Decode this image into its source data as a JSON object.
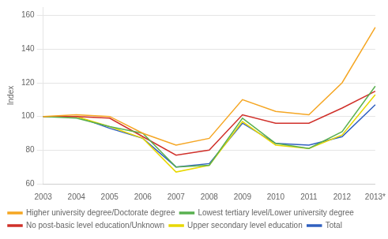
{
  "chart_data": {
    "type": "line",
    "ylabel": "Index",
    "categories": [
      "2003",
      "2004",
      "2005",
      "2006",
      "2007",
      "2008",
      "2009",
      "2010",
      "2011",
      "2012",
      "2013*"
    ],
    "series": [
      {
        "name": "Higher university degree/Doctorate degree",
        "color": "#F5A623",
        "values": [
          100,
          101,
          100,
          90,
          83,
          87,
          110,
          103,
          101,
          120,
          153
        ]
      },
      {
        "name": "Lowest tertiary level/Lower university degree",
        "color": "#5AB050",
        "values": [
          100,
          99,
          94,
          90,
          70,
          71,
          99,
          84,
          81,
          91,
          118
        ]
      },
      {
        "name": "No post-basic level education/Unknown",
        "color": "#D0302A",
        "values": [
          100,
          100,
          99,
          88,
          77,
          80,
          101,
          96,
          96,
          105,
          115
        ]
      },
      {
        "name": "Upper secondary level education",
        "color": "#E8D800",
        "values": [
          100,
          100,
          94,
          87,
          67,
          71,
          97,
          83,
          81,
          89,
          113
        ]
      },
      {
        "name": "Total",
        "color": "#3060C0",
        "values": [
          100,
          100,
          93,
          87,
          70,
          72,
          96,
          84,
          83,
          88,
          107
        ]
      }
    ],
    "ylim": [
      60,
      165
    ],
    "yticks": [
      60,
      80,
      100,
      120,
      140,
      160
    ],
    "grid": "y",
    "legend": "bottom"
  }
}
